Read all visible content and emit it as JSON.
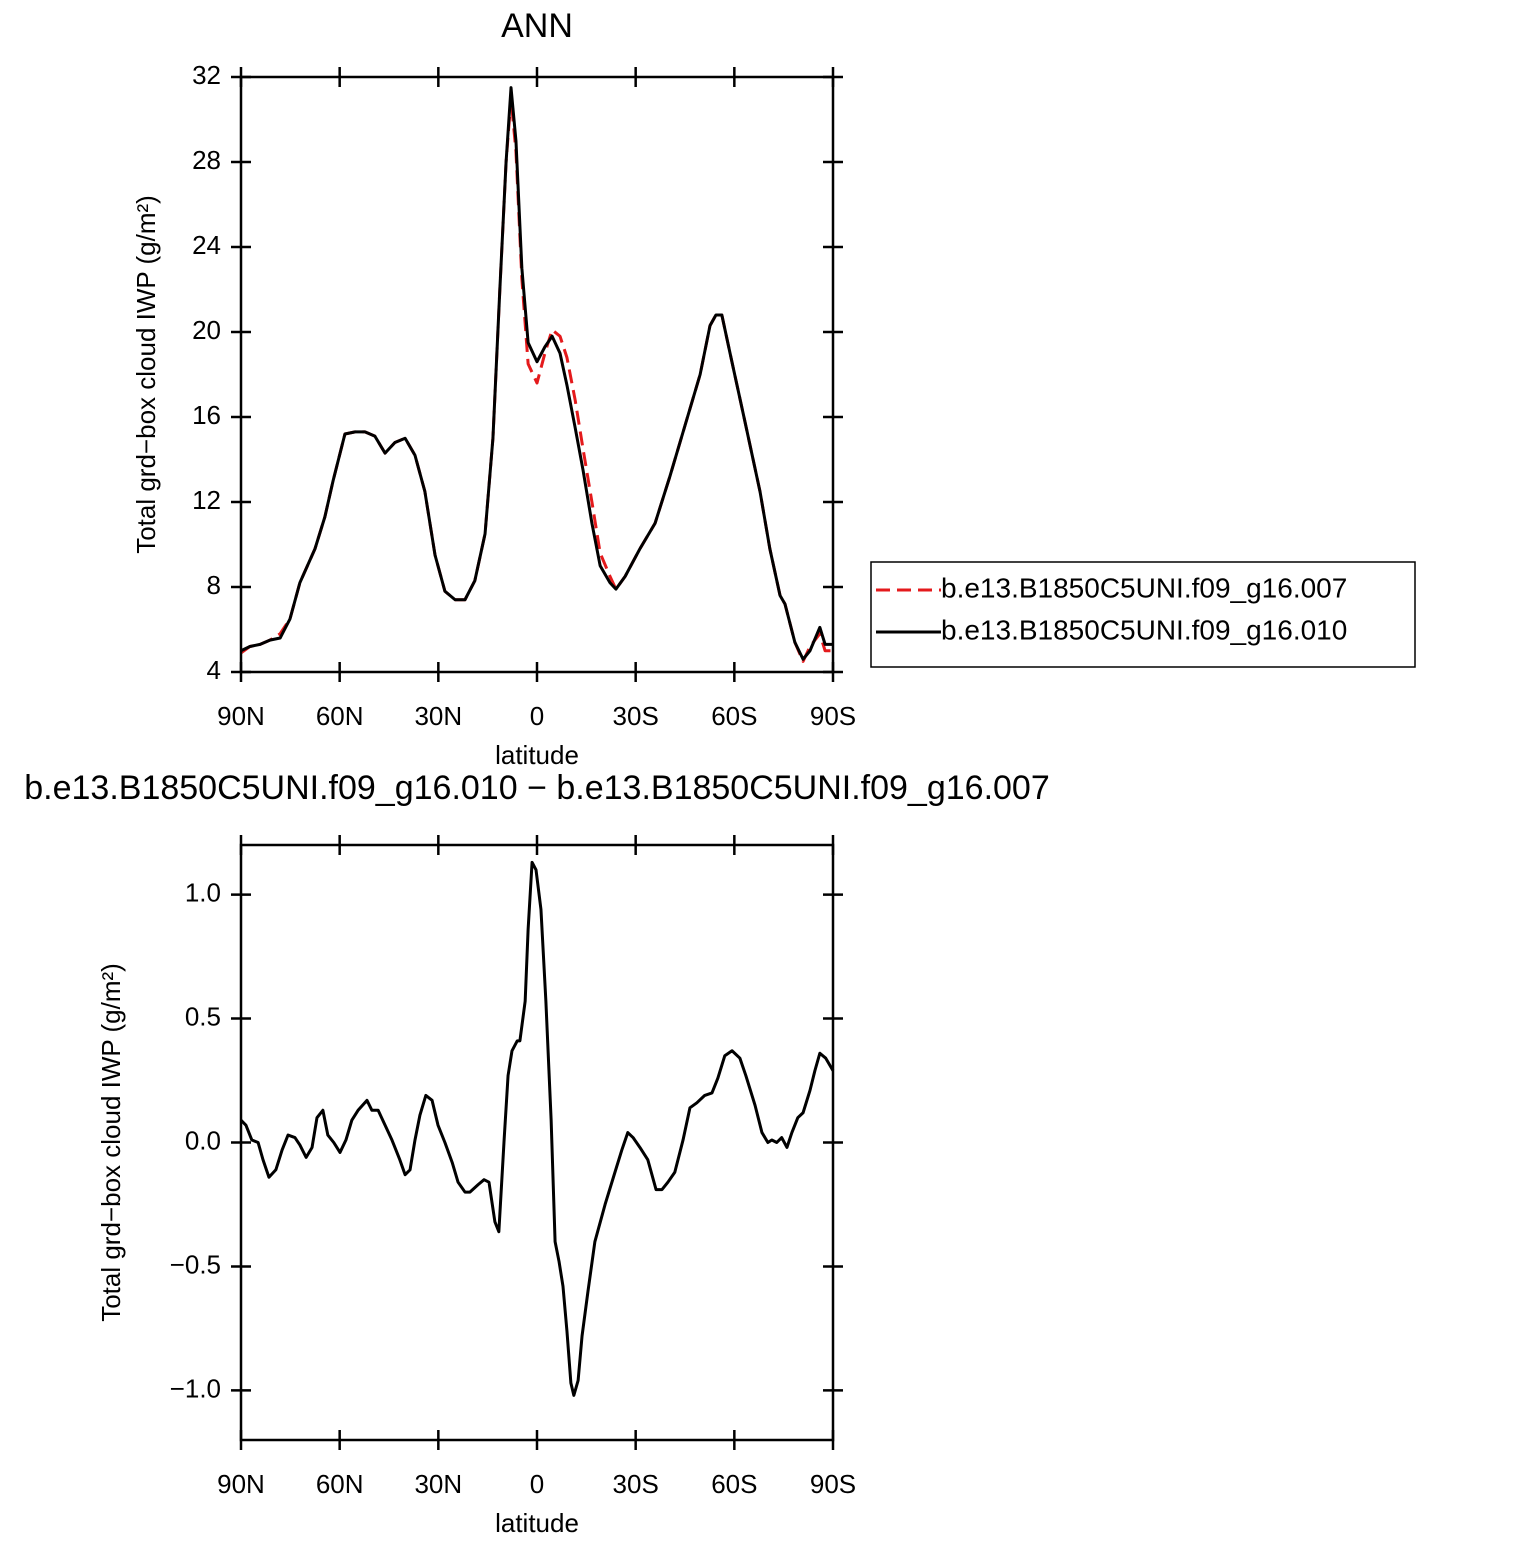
{
  "chart_data": [
    {
      "type": "line",
      "title": "ANN",
      "x_label": "latitude",
      "y_label": "Total grd−box cloud IWP (g/m²)",
      "xlim": [
        90,
        -90
      ],
      "ylim": [
        4,
        32
      ],
      "xticks": [
        {
          "value": 90,
          "label": "90N"
        },
        {
          "value": 60,
          "label": "60N"
        },
        {
          "value": 30,
          "label": "30N"
        },
        0,
        {
          "value": -30,
          "label": "30S"
        },
        {
          "value": -60,
          "label": "60S"
        },
        {
          "value": -90,
          "label": "90S"
        }
      ],
      "yticks": [
        4,
        8,
        12,
        16,
        20,
        24,
        28,
        32
      ],
      "legend": "right",
      "x": [
        90,
        87.3,
        84.2,
        81.2,
        78.1,
        75.1,
        72.1,
        67.5,
        64.5,
        62.0,
        58.4,
        55.3,
        52.3,
        49.3,
        46.2,
        43.2,
        40.1,
        37.1,
        34.1,
        31.0,
        28.0,
        24.9,
        21.9,
        18.9,
        15.8,
        13.4,
        11.3,
        9.4,
        7.9,
        6.4,
        4.6,
        2.7,
        0,
        -2.4,
        -4.6,
        -7.0,
        -9.1,
        -11.6,
        -14.0,
        -16.7,
        -19.2,
        -22.2,
        -24.0,
        -26.8,
        -31.3,
        -35.9,
        -40.4,
        -45.0,
        -49.6,
        -52.6,
        -54.4,
        -56.2,
        -58.7,
        -63.2,
        -67.8,
        -70.8,
        -73.9,
        -75.4,
        -78.4,
        -80.9,
        -83.0,
        -86.0,
        -87.6,
        -90
      ],
      "series": [
        {
          "name": "b.e13.B1850C5UNI.f09_g16.007",
          "color": "#e41a1c",
          "line_style": "dashed",
          "values": [
            4.9,
            5.2,
            5.3,
            5.5,
            5.8,
            6.5,
            8.2,
            9.8,
            11.3,
            13.0,
            15.2,
            15.3,
            15.3,
            15.1,
            14.3,
            14.8,
            15.0,
            14.2,
            12.5,
            9.5,
            7.8,
            7.4,
            7.4,
            8.3,
            10.5,
            15.0,
            22.0,
            28.0,
            31.0,
            28.5,
            22.5,
            18.5,
            17.6,
            19.0,
            20.1,
            19.8,
            18.8,
            16.8,
            14.5,
            12.0,
            9.6,
            8.5,
            7.9,
            8.5,
            9.8,
            11.0,
            13.2,
            15.6,
            18.0,
            20.3,
            20.8,
            20.8,
            19.0,
            15.8,
            12.5,
            9.8,
            7.6,
            7.2,
            5.4,
            4.5,
            5.2,
            5.8,
            5.0,
            5.0
          ]
        },
        {
          "name": "b.e13.B1850C5UNI.f09_g16.010",
          "color": "#000000",
          "line_style": "solid",
          "values": [
            5.0,
            5.2,
            5.3,
            5.5,
            5.6,
            6.5,
            8.2,
            9.8,
            11.3,
            13.0,
            15.2,
            15.3,
            15.3,
            15.1,
            14.3,
            14.8,
            15.0,
            14.2,
            12.5,
            9.5,
            7.8,
            7.4,
            7.4,
            8.3,
            10.5,
            15.0,
            22.0,
            28.0,
            31.5,
            29.0,
            23.0,
            19.5,
            18.6,
            19.3,
            19.8,
            19.0,
            17.5,
            15.5,
            13.5,
            11.0,
            9.0,
            8.2,
            7.9,
            8.5,
            9.8,
            11.0,
            13.2,
            15.6,
            18.0,
            20.3,
            20.8,
            20.8,
            19.0,
            15.8,
            12.5,
            9.8,
            7.6,
            7.2,
            5.4,
            4.6,
            5.0,
            6.1,
            5.3,
            5.3
          ]
        }
      ]
    },
    {
      "type": "line",
      "title": "b.e13.B1850C5UNI.f09_g16.010 − b.e13.B1850C5UNI.f09_g16.007",
      "x_label": "latitude",
      "y_label": "Total grd−box cloud IWP (g/m²)",
      "xlim": [
        90,
        -90
      ],
      "ylim": [
        -1.2,
        1.2
      ],
      "xticks": [
        {
          "value": 90,
          "label": "90N"
        },
        {
          "value": 60,
          "label": "60N"
        },
        {
          "value": 30,
          "label": "30N"
        },
        0,
        {
          "value": -30,
          "label": "30S"
        },
        {
          "value": -60,
          "label": "60S"
        },
        {
          "value": -90,
          "label": "90S"
        }
      ],
      "yticks": [
        {
          "value": -1,
          "label": "−1.0"
        },
        {
          "value": -0.5,
          "label": "−0.5"
        },
        {
          "value": 0,
          "label": "0.0"
        },
        0.5,
        {
          "value": 1,
          "label": "1.0"
        }
      ],
      "x": [
        90,
        88.5,
        86.7,
        84.8,
        83.3,
        81.5,
        79.4,
        77.5,
        75.7,
        73.6,
        72.1,
        70.2,
        68.4,
        66.9,
        65.1,
        63.6,
        61.8,
        59.9,
        58.1,
        56.3,
        54.4,
        51.7,
        50.2,
        48.3,
        46.2,
        44.1,
        41.7,
        40.1,
        38.6,
        37.1,
        35.6,
        33.8,
        31.9,
        30.1,
        28.0,
        25.8,
        24.0,
        21.9,
        20.4,
        17.9,
        16.1,
        14.6,
        12.8,
        11.6,
        10.0,
        8.8,
        7.6,
        6.0,
        5.2,
        3.6,
        2.7,
        1.5,
        0.3,
        -1.2,
        -2.7,
        -4.3,
        -5.5,
        -6.7,
        -7.9,
        -9.1,
        -10.3,
        -11.2,
        -12.5,
        -13.7,
        -15.5,
        -17.6,
        -20.7,
        -23.7,
        -25.8,
        -27.6,
        -29.2,
        -31.3,
        -33.7,
        -36.2,
        -38.0,
        -39.8,
        -41.9,
        -44.4,
        -46.5,
        -48.6,
        -51.0,
        -53.2,
        -55.0,
        -57.1,
        -59.3,
        -61.7,
        -63.5,
        -66.3,
        -68.4,
        -70.2,
        -71.4,
        -72.9,
        -74.4,
        -76.0,
        -77.5,
        -79.3,
        -80.9,
        -83.0,
        -84.5,
        -86.0,
        -87.8,
        -90
      ],
      "series": [
        {
          "color": "#000000",
          "line_style": "solid",
          "values": [
            0.09,
            0.07,
            0.01,
            0.0,
            -0.07,
            -0.14,
            -0.11,
            -0.03,
            0.03,
            0.02,
            -0.01,
            -0.06,
            -0.02,
            0.1,
            0.13,
            0.03,
            0.0,
            -0.04,
            0.01,
            0.09,
            0.13,
            0.17,
            0.13,
            0.13,
            0.07,
            0.01,
            -0.07,
            -0.13,
            -0.11,
            0.01,
            0.11,
            0.19,
            0.17,
            0.07,
            0.0,
            -0.08,
            -0.16,
            -0.2,
            -0.2,
            -0.17,
            -0.15,
            -0.16,
            -0.32,
            -0.36,
            0.01,
            0.27,
            0.37,
            0.41,
            0.41,
            0.57,
            0.86,
            1.13,
            1.1,
            0.94,
            0.57,
            0.09,
            -0.4,
            -0.48,
            -0.58,
            -0.76,
            -0.97,
            -1.02,
            -0.96,
            -0.78,
            -0.6,
            -0.4,
            -0.25,
            -0.12,
            -0.03,
            0.04,
            0.02,
            -0.02,
            -0.07,
            -0.19,
            -0.19,
            -0.16,
            -0.12,
            0.01,
            0.14,
            0.16,
            0.19,
            0.2,
            0.26,
            0.35,
            0.37,
            0.34,
            0.27,
            0.15,
            0.04,
            0.0,
            0.01,
            0.0,
            0.02,
            -0.02,
            0.04,
            0.1,
            0.12,
            0.21,
            0.29,
            0.36,
            0.34,
            0.29
          ]
        }
      ]
    }
  ]
}
